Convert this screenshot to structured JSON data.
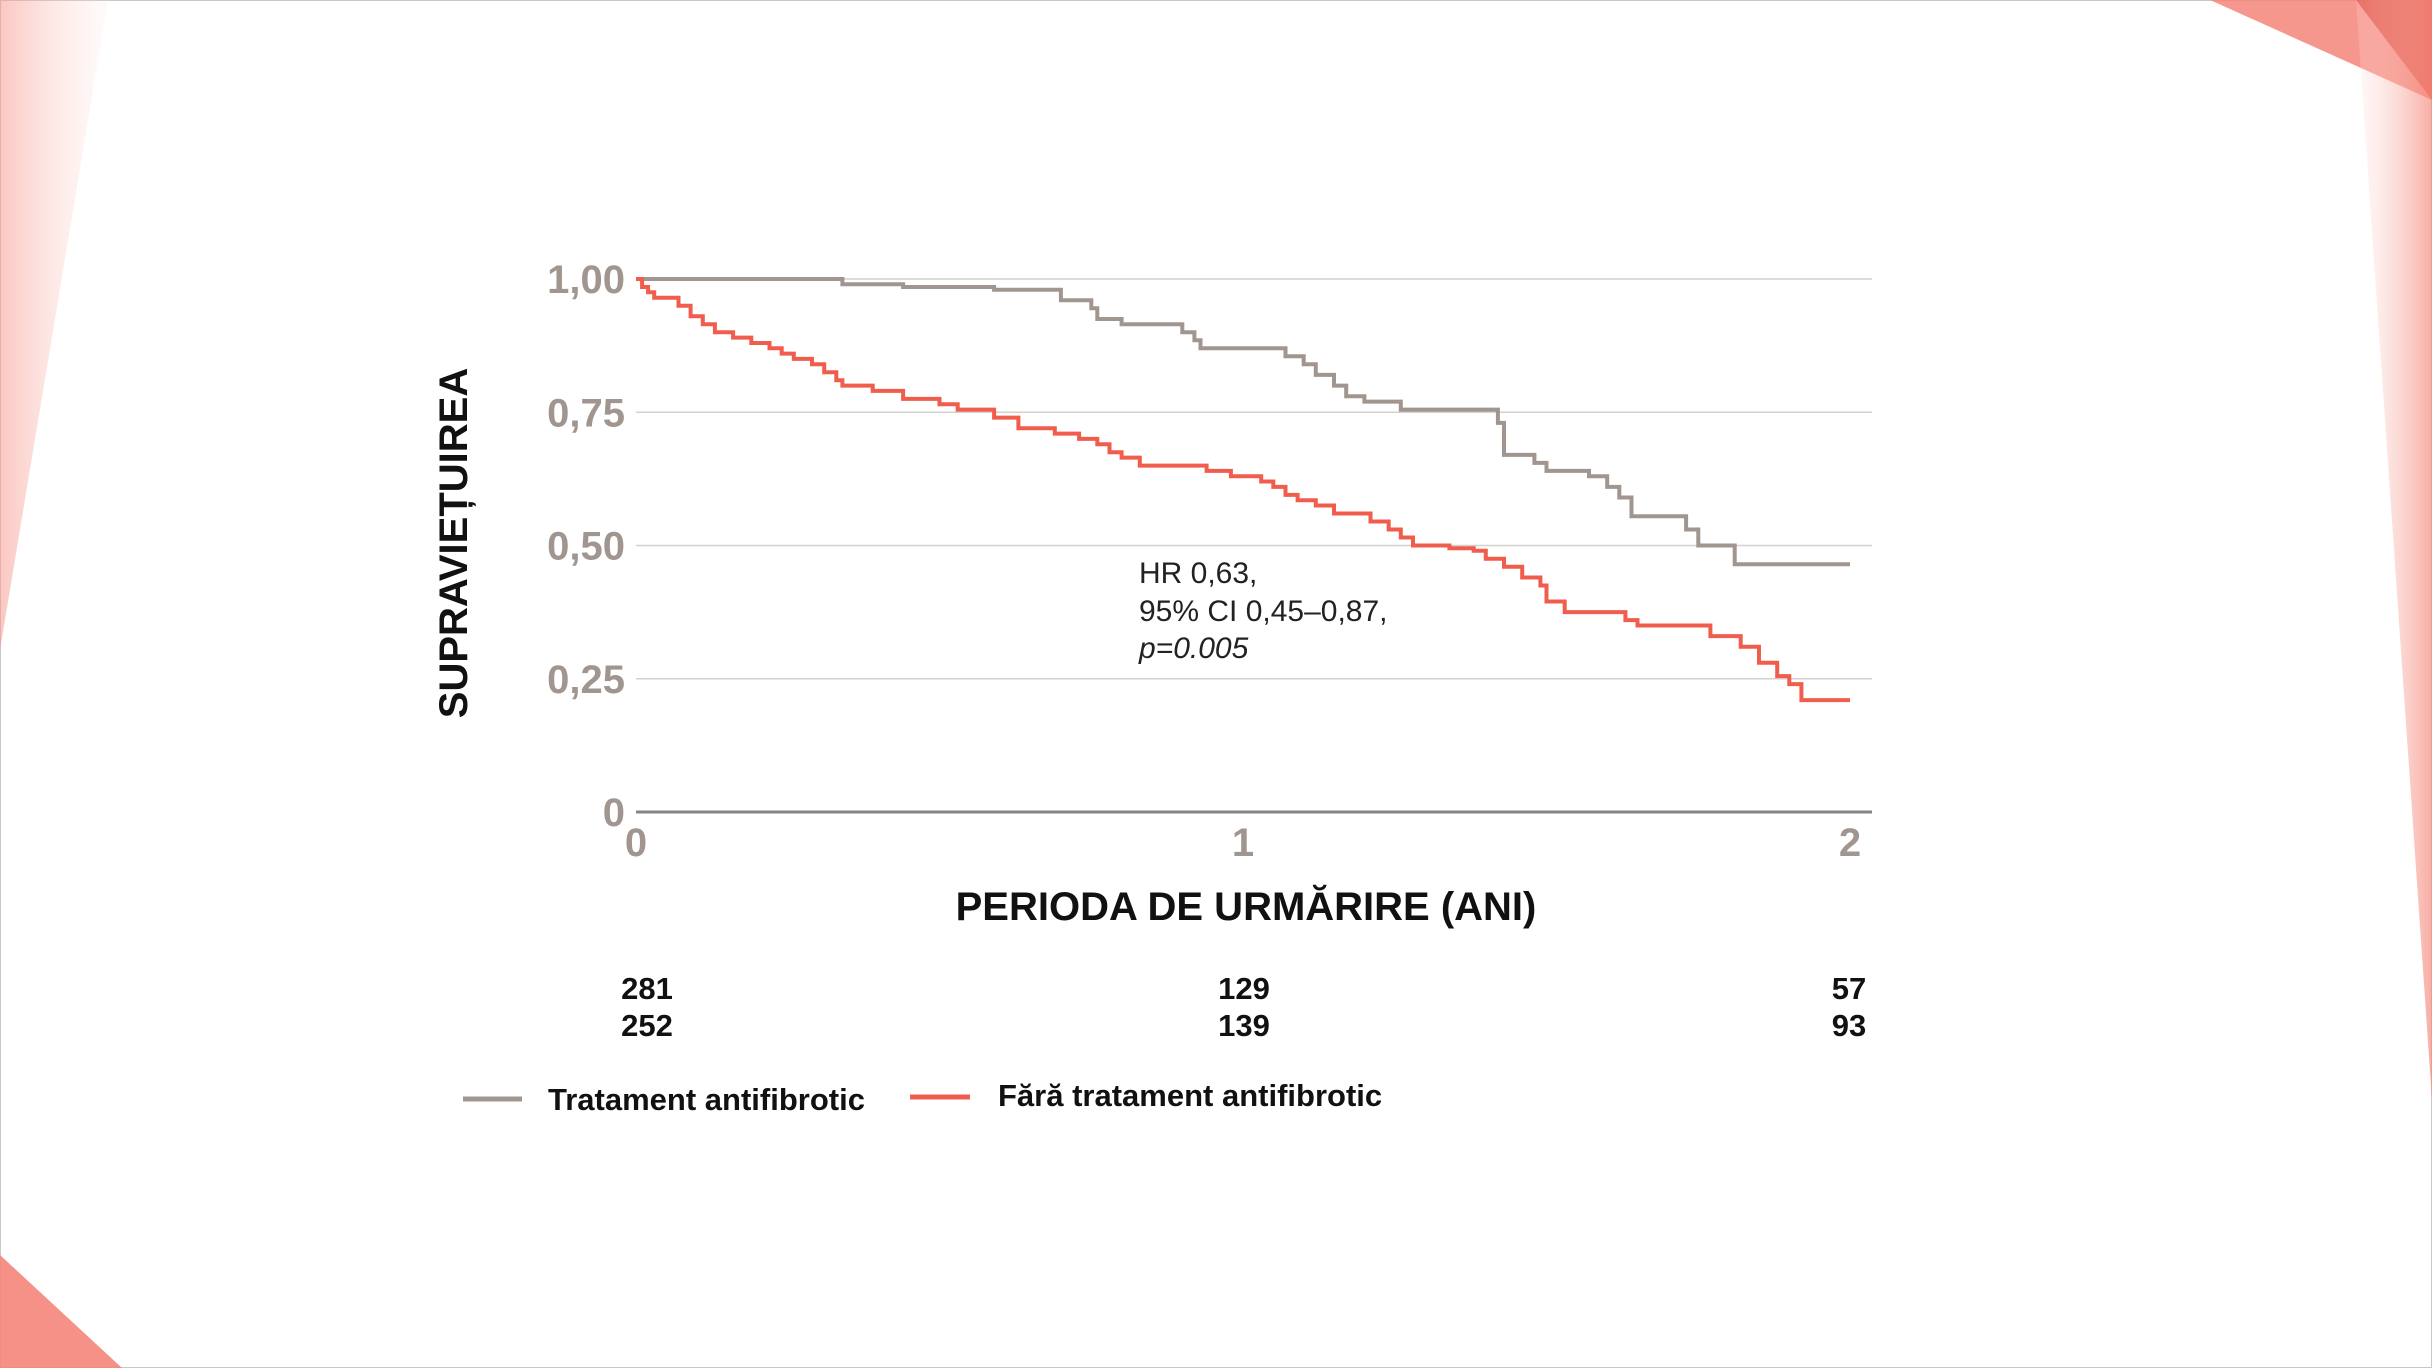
{
  "chart_data": {
    "type": "line",
    "step": true,
    "xlabel": "PERIODA DE URMĂRIRE (ANI)",
    "ylabel": "SUPRAVIEȚUIREA",
    "xlim": [
      0,
      2
    ],
    "ylim": [
      0,
      1
    ],
    "x_ticks": [
      {
        "value": 0,
        "label": "0"
      },
      {
        "value": 1,
        "label": "1"
      },
      {
        "value": 2,
        "label": "2"
      }
    ],
    "y_ticks": [
      {
        "value": 0,
        "label": "0"
      },
      {
        "value": 0.25,
        "label": "0,25"
      },
      {
        "value": 0.5,
        "label": "0,50"
      },
      {
        "value": 0.75,
        "label": "0,75"
      },
      {
        "value": 1,
        "label": "1,00"
      }
    ],
    "gridlines": true,
    "annotation": {
      "line1": "HR 0,63,",
      "line2": "95% CI 0,45–0,87,",
      "line3": "p=0.005"
    },
    "series": [
      {
        "name": "Tratament antifibrotic",
        "color": "#a1958f",
        "points": [
          [
            0,
            1.0
          ],
          [
            0.34,
            0.99
          ],
          [
            0.44,
            0.985
          ],
          [
            0.59,
            0.98
          ],
          [
            0.7,
            0.96
          ],
          [
            0.75,
            0.945
          ],
          [
            0.76,
            0.925
          ],
          [
            0.8,
            0.915
          ],
          [
            0.9,
            0.9
          ],
          [
            0.92,
            0.885
          ],
          [
            0.93,
            0.87
          ],
          [
            1.07,
            0.855
          ],
          [
            1.1,
            0.84
          ],
          [
            1.12,
            0.82
          ],
          [
            1.15,
            0.8
          ],
          [
            1.17,
            0.78
          ],
          [
            1.2,
            0.77
          ],
          [
            1.26,
            0.755
          ],
          [
            1.42,
            0.73
          ],
          [
            1.43,
            0.67
          ],
          [
            1.48,
            0.655
          ],
          [
            1.5,
            0.64
          ],
          [
            1.57,
            0.63
          ],
          [
            1.6,
            0.61
          ],
          [
            1.62,
            0.59
          ],
          [
            1.64,
            0.555
          ],
          [
            1.73,
            0.53
          ],
          [
            1.75,
            0.5
          ],
          [
            1.81,
            0.465
          ],
          [
            2.0,
            0.465
          ]
        ]
      },
      {
        "name": "Fără tratament antifibrotic",
        "color": "#f15d4c",
        "points": [
          [
            0,
            1.0
          ],
          [
            0.01,
            0.985
          ],
          [
            0.02,
            0.975
          ],
          [
            0.03,
            0.965
          ],
          [
            0.07,
            0.95
          ],
          [
            0.09,
            0.93
          ],
          [
            0.11,
            0.915
          ],
          [
            0.13,
            0.9
          ],
          [
            0.16,
            0.89
          ],
          [
            0.19,
            0.88
          ],
          [
            0.22,
            0.87
          ],
          [
            0.24,
            0.86
          ],
          [
            0.26,
            0.85
          ],
          [
            0.29,
            0.84
          ],
          [
            0.31,
            0.825
          ],
          [
            0.33,
            0.81
          ],
          [
            0.34,
            0.8
          ],
          [
            0.39,
            0.79
          ],
          [
            0.44,
            0.775
          ],
          [
            0.5,
            0.765
          ],
          [
            0.53,
            0.755
          ],
          [
            0.59,
            0.74
          ],
          [
            0.63,
            0.72
          ],
          [
            0.69,
            0.71
          ],
          [
            0.73,
            0.7
          ],
          [
            0.76,
            0.69
          ],
          [
            0.78,
            0.675
          ],
          [
            0.8,
            0.665
          ],
          [
            0.83,
            0.65
          ],
          [
            0.94,
            0.64
          ],
          [
            0.98,
            0.63
          ],
          [
            1.03,
            0.62
          ],
          [
            1.05,
            0.61
          ],
          [
            1.07,
            0.595
          ],
          [
            1.09,
            0.585
          ],
          [
            1.12,
            0.575
          ],
          [
            1.15,
            0.56
          ],
          [
            1.21,
            0.545
          ],
          [
            1.24,
            0.53
          ],
          [
            1.26,
            0.515
          ],
          [
            1.28,
            0.5
          ],
          [
            1.34,
            0.495
          ],
          [
            1.38,
            0.49
          ],
          [
            1.4,
            0.475
          ],
          [
            1.43,
            0.46
          ],
          [
            1.46,
            0.44
          ],
          [
            1.49,
            0.425
          ],
          [
            1.5,
            0.395
          ],
          [
            1.53,
            0.375
          ],
          [
            1.63,
            0.36
          ],
          [
            1.65,
            0.35
          ],
          [
            1.77,
            0.33
          ],
          [
            1.82,
            0.31
          ],
          [
            1.85,
            0.28
          ],
          [
            1.88,
            0.255
          ],
          [
            1.9,
            0.24
          ],
          [
            1.92,
            0.21
          ],
          [
            2.0,
            0.21
          ]
        ]
      }
    ],
    "risk_table": [
      {
        "series": "Tratament antifibrotic",
        "counts": [
          "281",
          "129",
          "57"
        ]
      },
      {
        "series": "Fără tratament antifibrotic",
        "counts": [
          "252",
          "139",
          "93"
        ]
      }
    ],
    "legend": [
      {
        "label": "Tratament antifibrotic",
        "color": "#a1958f"
      },
      {
        "label": "Fără tratament antifibrotic",
        "color": "#f15d4c"
      }
    ]
  }
}
